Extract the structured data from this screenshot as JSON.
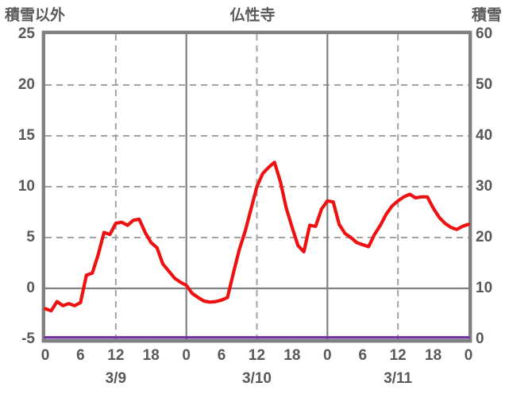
{
  "header": {
    "left_axis_title": "積雪以外",
    "chart_title": "仏性寺",
    "right_axis_title": "積雪"
  },
  "chart_data": {
    "type": "line",
    "title": "仏性寺",
    "xlabel": "",
    "ylabel_left": "積雪以外",
    "ylabel_right": "積雪",
    "ylim_left": [
      -5,
      25
    ],
    "ylim_right": [
      0,
      60
    ],
    "x_hours_total": 72,
    "x_tick_interval_hours": 6,
    "x_tick_labels": [
      "0",
      "6",
      "12",
      "18",
      "0",
      "6",
      "12",
      "18",
      "0",
      "6",
      "12",
      "18",
      "0"
    ],
    "x_date_labels": [
      "3/9",
      "3/10",
      "3/11"
    ],
    "y_left_tick_labels": [
      "25",
      "20",
      "15",
      "10",
      "5",
      "0",
      "-5"
    ],
    "y_right_tick_labels": [
      "60",
      "50",
      "40",
      "30",
      "20",
      "10",
      "0"
    ],
    "grid": {
      "h_dashed_at_left_values": [
        20,
        15,
        10,
        5
      ],
      "h_solid_at_left_values": [
        0
      ],
      "v_dashed_at_hours": [
        12,
        36,
        60
      ],
      "v_solid_at_hours": [
        24,
        48
      ]
    },
    "series": [
      {
        "name": "積雪以外",
        "axis": "left",
        "color": "#ee1111",
        "x_step_hours": 1,
        "values": [
          -2.0,
          -2.2,
          -1.3,
          -1.7,
          -1.5,
          -1.7,
          -1.4,
          1.3,
          1.5,
          3.3,
          5.5,
          5.3,
          6.4,
          6.5,
          6.2,
          6.7,
          6.8,
          5.5,
          4.5,
          4.0,
          2.4,
          1.7,
          1.0,
          0.6,
          0.3,
          -0.5,
          -0.9,
          -1.25,
          -1.35,
          -1.3,
          -1.15,
          -0.9,
          1.5,
          3.8,
          5.6,
          7.8,
          10.0,
          11.3,
          11.9,
          12.4,
          10.5,
          7.9,
          6.0,
          4.2,
          3.6,
          6.2,
          6.1,
          7.8,
          8.6,
          8.5,
          6.3,
          5.4,
          5.0,
          4.5,
          4.3,
          4.1,
          5.3,
          6.2,
          7.3,
          8.1,
          8.6,
          9.0,
          9.25,
          8.9,
          9.0,
          9.0,
          7.9,
          7.0,
          6.4,
          6.0,
          5.8,
          6.1,
          6.3
        ]
      },
      {
        "name": "積雪",
        "axis": "right",
        "color": "#7030a0",
        "x_step_hours": 1,
        "values": [
          0,
          0,
          0,
          0,
          0,
          0,
          0,
          0,
          0,
          0,
          0,
          0,
          0,
          0,
          0,
          0,
          0,
          0,
          0,
          0,
          0,
          0,
          0,
          0,
          0,
          0,
          0,
          0,
          0,
          0,
          0,
          0,
          0,
          0,
          0,
          0,
          0,
          0,
          0,
          0,
          0,
          0,
          0,
          0,
          0,
          0,
          0,
          0,
          0,
          0,
          0,
          0,
          0,
          0,
          0,
          0,
          0,
          0,
          0,
          0,
          0,
          0,
          0,
          0,
          0,
          0,
          0,
          0,
          0,
          0,
          0,
          0,
          0
        ]
      }
    ]
  },
  "colors": {
    "text": "#595959",
    "plot_border": "#808080",
    "grid_solid": "#808080",
    "grid_dashed": "#a3a3a3",
    "series_red": "#ee1111",
    "series_purple": "#7030a0",
    "background": "#ffffff"
  }
}
